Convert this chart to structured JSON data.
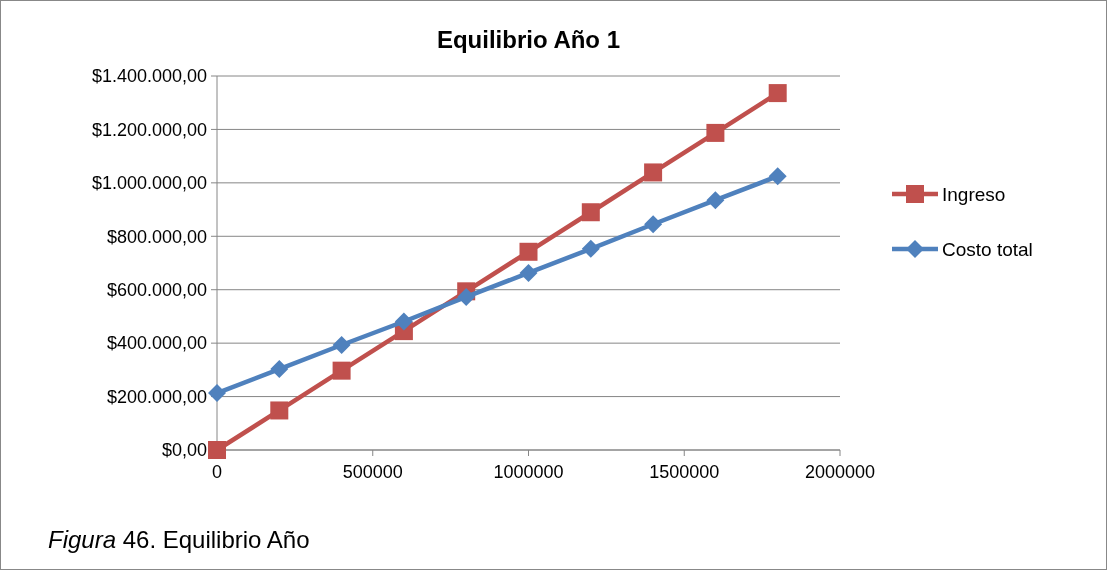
{
  "chart_data": {
    "type": "line",
    "title": "Equilibrio Año 1",
    "x": [
      0,
      200000,
      400000,
      600000,
      800000,
      1000000,
      1200000,
      1400000,
      1600000,
      1800000
    ],
    "series": [
      {
        "name": "Ingreso",
        "color": "#c0504d",
        "marker": "square",
        "values": [
          0,
          148000,
          297000,
          445000,
          594000,
          742000,
          890000,
          1039000,
          1187000,
          1336000
        ]
      },
      {
        "name": "Costo total",
        "color": "#4f81bd",
        "marker": "diamond",
        "values": [
          213000,
          303000,
          393000,
          481000,
          573000,
          663000,
          753000,
          845000,
          935000,
          1025000
        ]
      }
    ],
    "xlim": [
      0,
      2000000
    ],
    "xticks": [
      0,
      500000,
      1000000,
      1500000,
      2000000
    ],
    "ylim": [
      0,
      1400000
    ],
    "yticks": [
      {
        "value": 0,
        "label": "$0,00"
      },
      {
        "value": 200000,
        "label": "$200.000,00"
      },
      {
        "value": 400000,
        "label": "$400.000,00"
      },
      {
        "value": 600000,
        "label": "$600.000,00"
      },
      {
        "value": 800000,
        "label": "$800.000,00"
      },
      {
        "value": 1000000,
        "label": "$1.000.000,00"
      },
      {
        "value": 1200000,
        "label": "$1.200.000,00"
      },
      {
        "value": 1400000,
        "label": "$1.400.000,00"
      }
    ],
    "grid": "y",
    "legend": "right",
    "annotations": [
      "Figura 46. Equilibrio Año"
    ]
  }
}
